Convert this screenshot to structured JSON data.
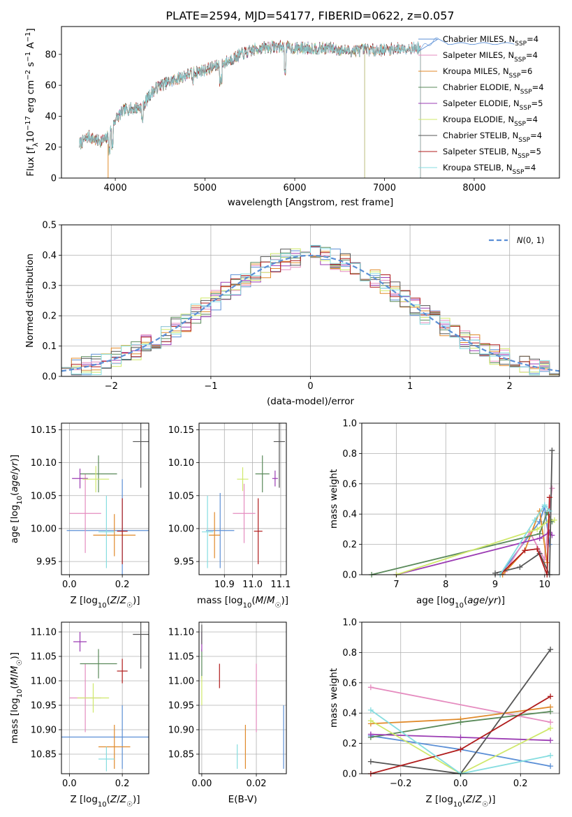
{
  "title": "PLATE=2594, MJD=54177, FIBERID=0622, z=0.057",
  "colors": {
    "chabrier_miles": "#5b8fd6",
    "salpeter_miles": "#e58bbf",
    "kroupa_miles": "#e08a2a",
    "chabrier_elodie": "#5a8a5a",
    "salpeter_elodie": "#9b3bb3",
    "kroupa_elodie": "#cfe86a",
    "chabrier_stelib": "#555555",
    "salpeter_stelib": "#b01c1c",
    "kroupa_stelib": "#86dde0",
    "normal_fit": "#5b8fd6"
  },
  "chart_data": [
    {
      "type": "line",
      "id": "spectrum",
      "xlabel": "wavelength [Angstrom, rest frame]",
      "ylabel": "Flux [f_λ 10^-17 erg cm^-2 s^-1 A^-1]",
      "xlim": [
        3400,
        8950
      ],
      "ylim": [
        0,
        98
      ],
      "xticks": [
        4000,
        5000,
        6000,
        7000,
        8000
      ],
      "yticks": [
        0,
        20,
        40,
        60,
        80
      ],
      "grid": false,
      "legend_position": "top-right",
      "legend": [
        {
          "label": "Chabrier MILES, N",
          "sub": "SSP",
          "suffix": "=4"
        },
        {
          "label": "Salpeter MILES, N",
          "sub": "SSP",
          "suffix": "=4"
        },
        {
          "label": "Kroupa MILES, N",
          "sub": "SSP",
          "suffix": "=6"
        },
        {
          "label": "Chabrier ELODIE, N",
          "sub": "SSP",
          "suffix": "=4"
        },
        {
          "label": "Salpeter ELODIE, N",
          "sub": "SSP",
          "suffix": "=5"
        },
        {
          "label": "Kroupa ELODIE, N",
          "sub": "SSP",
          "suffix": "=4"
        },
        {
          "label": "Chabrier STELIB, N",
          "sub": "SSP",
          "suffix": "=4"
        },
        {
          "label": "Salpeter STELIB, N",
          "sub": "SSP",
          "suffix": "=5"
        },
        {
          "label": "Kroupa STELIB, N",
          "sub": "SSP",
          "suffix": "=4"
        }
      ],
      "continuum": {
        "x": [
          3600,
          3700,
          3800,
          3900,
          4000,
          4100,
          4200,
          4300,
          4400,
          4500,
          4600,
          4800,
          5000,
          5200,
          5400,
          5600,
          5800,
          6000,
          6200,
          6400,
          6600,
          6800,
          7000,
          7200,
          7400,
          7600
        ],
        "y": [
          22,
          27,
          24,
          25,
          38,
          44,
          45,
          46,
          55,
          60,
          62,
          67,
          70,
          74,
          80,
          84,
          85,
          84,
          84,
          84,
          82,
          83,
          83,
          84,
          84,
          90
        ]
      },
      "series_ranges": [
        {
          "name": "Chabrier MILES, N_SSP=4",
          "x": [
            3600,
            7600
          ]
        },
        {
          "name": "Salpeter MILES, N_SSP=4",
          "x": [
            3600,
            7400
          ]
        },
        {
          "name": "Kroupa MILES, N_SSP=6",
          "x": [
            3600,
            7400
          ]
        },
        {
          "name": "Chabrier ELODIE, N_SSP=4",
          "x": [
            3600,
            6780
          ]
        },
        {
          "name": "Salpeter ELODIE, N_SSP=5",
          "x": [
            3600,
            6780
          ]
        },
        {
          "name": "Kroupa ELODIE, N_SSP=4",
          "x": [
            3600,
            6780
          ]
        },
        {
          "name": "Chabrier STELIB, N_SSP=4",
          "x": [
            3600,
            7400
          ]
        },
        {
          "name": "Salpeter STELIB, N_SSP=5",
          "x": [
            3600,
            7400
          ]
        },
        {
          "name": "Kroupa STELIB, N_SSP=4",
          "x": [
            3600,
            7400
          ]
        }
      ]
    },
    {
      "type": "line",
      "id": "residual-histogram",
      "xlabel": "(data-model)/error",
      "ylabel": "Normed distribution",
      "xlim": [
        -2.5,
        2.5
      ],
      "ylim": [
        0,
        0.5
      ],
      "xticks": [
        -2,
        -1,
        0,
        1,
        2
      ],
      "yticks": [
        0.0,
        0.1,
        0.2,
        0.3,
        0.4,
        0.5
      ],
      "grid": true,
      "legend_position": "top-right",
      "legend_label": "N(0,1)",
      "bin_width": 0.1
    },
    {
      "type": "scatter",
      "id": "age-vs-z",
      "xlabel": "Z [log10(Z/Z☉)]",
      "ylabel": "age [log10(age/yr)]",
      "xlim": [
        -0.03,
        0.3
      ],
      "ylim": [
        9.93,
        10.16
      ],
      "xticks": [
        0.0,
        0.2
      ],
      "yticks": [
        9.95,
        10.0,
        10.05,
        10.1,
        10.15
      ],
      "grid": true,
      "points": [
        {
          "x": 0.2,
          "y": 9.997,
          "xerr": 0.21,
          "yerr": 0.078,
          "color": "#5b8fd6"
        },
        {
          "x": 0.06,
          "y": 10.023,
          "xerr": 0.06,
          "yerr": 0.06,
          "color": "#e58bbf"
        },
        {
          "x": 0.17,
          "y": 9.99,
          "xerr": 0.08,
          "yerr": 0.032,
          "color": "#e08a2a"
        },
        {
          "x": 0.11,
          "y": 10.083,
          "xerr": 0.07,
          "yerr": 0.028,
          "color": "#5a8a5a"
        },
        {
          "x": 0.04,
          "y": 10.076,
          "xerr": 0.03,
          "yerr": 0.015,
          "color": "#9b3bb3"
        },
        {
          "x": 0.1,
          "y": 10.075,
          "xerr": 0.05,
          "yerr": 0.02,
          "color": "#cfe86a"
        },
        {
          "x": 0.27,
          "y": 10.132,
          "xerr": 0.03,
          "yerr": 0.07,
          "color": "#555555"
        },
        {
          "x": 0.2,
          "y": 9.996,
          "xerr": 0.02,
          "yerr": 0.05,
          "color": "#b01c1c"
        },
        {
          "x": 0.14,
          "y": 9.995,
          "xerr": 0.03,
          "yerr": 0.055,
          "color": "#86dde0"
        }
      ]
    },
    {
      "type": "scatter",
      "id": "age-vs-mass",
      "xlabel": "mass [log10(M/M☉)]",
      "ylabel": "",
      "xlim": [
        10.81,
        11.12
      ],
      "ylim": [
        9.93,
        10.16
      ],
      "xticks": [
        10.9,
        11.0,
        11.1
      ],
      "yticks": [
        9.95,
        10.0,
        10.05,
        10.1,
        10.15
      ],
      "grid": true,
      "points": [
        {
          "x": 10.885,
          "y": 9.997,
          "xerr": 0.05,
          "yerr": 0.057,
          "color": "#5b8fd6"
        },
        {
          "x": 10.97,
          "y": 10.023,
          "xerr": 0.04,
          "yerr": 0.045,
          "color": "#e58bbf"
        },
        {
          "x": 10.865,
          "y": 9.99,
          "xerr": 0.02,
          "yerr": 0.035,
          "color": "#e08a2a"
        },
        {
          "x": 11.035,
          "y": 10.083,
          "xerr": 0.025,
          "yerr": 0.028,
          "color": "#5a8a5a"
        },
        {
          "x": 11.08,
          "y": 10.076,
          "xerr": 0.01,
          "yerr": 0.012,
          "color": "#9b3bb3"
        },
        {
          "x": 10.965,
          "y": 10.075,
          "xerr": 0.02,
          "yerr": 0.018,
          "color": "#cfe86a"
        },
        {
          "x": 11.095,
          "y": 10.132,
          "xerr": 0.02,
          "yerr": 0.07,
          "color": "#555555"
        },
        {
          "x": 11.02,
          "y": 9.996,
          "xerr": 0.015,
          "yerr": 0.05,
          "color": "#b01c1c"
        },
        {
          "x": 10.84,
          "y": 9.995,
          "xerr": 0.02,
          "yerr": 0.055,
          "color": "#86dde0"
        }
      ]
    },
    {
      "type": "line",
      "id": "massweight-vs-age",
      "xlabel": "age [log10(age/yr)]",
      "ylabel": "mass weight",
      "xlim": [
        6.3,
        10.3
      ],
      "ylim": [
        0,
        1
      ],
      "xticks": [
        7,
        8,
        9,
        10
      ],
      "yticks": [
        0.0,
        0.2,
        0.4,
        0.6,
        0.8,
        1.0
      ],
      "grid": true,
      "series": [
        {
          "color": "#5b8fd6",
          "x": [
            9.1,
            9.9,
            10.0,
            10.1
          ],
          "y": [
            0.0,
            0.35,
            0.45,
            0.2
          ]
        },
        {
          "color": "#e58bbf",
          "x": [
            9.2,
            9.7,
            10.0,
            10.15
          ],
          "y": [
            0.02,
            0.28,
            0.1,
            0.57
          ]
        },
        {
          "color": "#e08a2a",
          "x": [
            9.15,
            9.6,
            9.9,
            10.05
          ],
          "y": [
            0.0,
            0.16,
            0.42,
            0.08
          ]
        },
        {
          "color": "#5a8a5a",
          "x": [
            6.5,
            9.9,
            10.05,
            10.15
          ],
          "y": [
            0.0,
            0.27,
            0.41,
            0.35
          ]
        },
        {
          "color": "#9b3bb3",
          "x": [
            7.0,
            9.9,
            10.1,
            10.15
          ],
          "y": [
            0.0,
            0.24,
            0.28,
            0.26
          ]
        },
        {
          "color": "#cfe86a",
          "x": [
            7.0,
            9.85,
            10.1,
            10.2
          ],
          "y": [
            0.0,
            0.3,
            0.36,
            0.36
          ]
        },
        {
          "color": "#555555",
          "x": [
            9.0,
            9.5,
            9.9,
            10.1,
            10.15
          ],
          "y": [
            0.01,
            0.05,
            0.14,
            0.0,
            0.82
          ]
        },
        {
          "color": "#b01c1c",
          "x": [
            9.1,
            9.6,
            9.85,
            10.05,
            10.1
          ],
          "y": [
            0.0,
            0.16,
            0.17,
            0.0,
            0.51
          ]
        },
        {
          "color": "#86dde0",
          "x": [
            9.1,
            9.8,
            10.0,
            10.1
          ],
          "y": [
            0.0,
            0.36,
            0.46,
            0.42
          ]
        }
      ]
    },
    {
      "type": "scatter",
      "id": "mass-vs-z",
      "xlabel": "Z [log10(Z/Z☉)]",
      "ylabel": "mass [log10(M/M☉)]",
      "xlim": [
        -0.03,
        0.3
      ],
      "ylim": [
        10.81,
        11.12
      ],
      "xticks": [
        0.0,
        0.2
      ],
      "yticks": [
        10.85,
        10.9,
        10.95,
        11.0,
        11.05,
        11.1
      ],
      "grid": true,
      "points": [
        {
          "x": 0.2,
          "y": 10.885,
          "xerr": 0.23,
          "yerr": 0.065,
          "color": "#5b8fd6"
        },
        {
          "x": 0.06,
          "y": 10.965,
          "xerr": 0.06,
          "yerr": 0.07,
          "color": "#e58bbf"
        },
        {
          "x": 0.17,
          "y": 10.865,
          "xerr": 0.06,
          "yerr": 0.045,
          "color": "#e08a2a"
        },
        {
          "x": 0.11,
          "y": 11.035,
          "xerr": 0.07,
          "yerr": 0.03,
          "color": "#5a8a5a"
        },
        {
          "x": 0.04,
          "y": 11.08,
          "xerr": 0.025,
          "yerr": 0.02,
          "color": "#9b3bb3"
        },
        {
          "x": 0.09,
          "y": 10.965,
          "xerr": 0.06,
          "yerr": 0.03,
          "color": "#cfe86a"
        },
        {
          "x": 0.27,
          "y": 11.095,
          "xerr": 0.03,
          "yerr": 0.07,
          "color": "#555555"
        },
        {
          "x": 0.2,
          "y": 11.02,
          "xerr": 0.02,
          "yerr": 0.025,
          "color": "#b01c1c"
        },
        {
          "x": 0.14,
          "y": 10.84,
          "xerr": 0.03,
          "yerr": 0.025,
          "color": "#86dde0"
        }
      ]
    },
    {
      "type": "scatter",
      "id": "mass-vs-ebv",
      "xlabel": "E(B-V)",
      "ylabel": "",
      "xlim": [
        -0.001,
        0.031
      ],
      "ylim": [
        10.81,
        11.12
      ],
      "xticks": [
        0.0,
        0.02
      ],
      "yticks": [
        10.85,
        10.9,
        10.95,
        11.0,
        11.05,
        11.1
      ],
      "grid": true,
      "points": [
        {
          "x": 0.03,
          "y": 10.885,
          "xerr": 0,
          "yerr": 0.065,
          "color": "#5b8fd6"
        },
        {
          "x": 0.02,
          "y": 10.965,
          "xerr": 0,
          "yerr": 0.07,
          "color": "#e58bbf"
        },
        {
          "x": 0.016,
          "y": 10.865,
          "xerr": 0,
          "yerr": 0.045,
          "color": "#e08a2a"
        },
        {
          "x": 0.0,
          "y": 11.035,
          "xerr": 0,
          "yerr": 0.03,
          "color": "#5a8a5a"
        },
        {
          "x": 0.0,
          "y": 11.08,
          "xerr": 0,
          "yerr": 0.02,
          "color": "#9b3bb3"
        },
        {
          "x": 0.0,
          "y": 10.98,
          "xerr": 0,
          "yerr": 0.03,
          "color": "#cfe86a"
        },
        {
          "x": 0.0,
          "y": 11.095,
          "xerr": 0,
          "yerr": 0.02,
          "color": "#555555"
        },
        {
          "x": 0.0065,
          "y": 11.01,
          "xerr": 0,
          "yerr": 0.025,
          "color": "#b01c1c"
        },
        {
          "x": 0.013,
          "y": 10.845,
          "xerr": 0,
          "yerr": 0.025,
          "color": "#86dde0"
        }
      ]
    },
    {
      "type": "line",
      "id": "massweight-vs-z",
      "xlabel": "Z [log10(Z/Z☉)]",
      "ylabel": "mass weight",
      "xlim": [
        -0.33,
        0.33
      ],
      "ylim": [
        0,
        1
      ],
      "xticks": [
        -0.2,
        0.0,
        0.2
      ],
      "yticks": [
        0.0,
        0.2,
        0.4,
        0.6,
        0.8,
        1.0
      ],
      "grid": true,
      "series": [
        {
          "color": "#5b8fd6",
          "x": [
            -0.3,
            0.0,
            0.3
          ],
          "y": [
            0.25,
            0.16,
            0.05
          ]
        },
        {
          "color": "#e58bbf",
          "x": [
            -0.3,
            0.3
          ],
          "y": [
            0.57,
            0.34
          ]
        },
        {
          "color": "#e08a2a",
          "x": [
            -0.3,
            0.0,
            0.3
          ],
          "y": [
            0.33,
            0.36,
            0.44
          ]
        },
        {
          "color": "#5a8a5a",
          "x": [
            -0.3,
            0.0,
            0.3
          ],
          "y": [
            0.24,
            0.34,
            0.41
          ]
        },
        {
          "color": "#9b3bb3",
          "x": [
            -0.3,
            0.0,
            0.3
          ],
          "y": [
            0.26,
            0.24,
            0.22
          ]
        },
        {
          "color": "#cfe86a",
          "x": [
            -0.3,
            0.0,
            0.3
          ],
          "y": [
            0.35,
            0.0,
            0.3
          ]
        },
        {
          "color": "#555555",
          "x": [
            -0.3,
            0.0,
            0.3
          ],
          "y": [
            0.08,
            0.0,
            0.82
          ]
        },
        {
          "color": "#b01c1c",
          "x": [
            -0.3,
            0.0,
            0.3
          ],
          "y": [
            0.0,
            0.16,
            0.51
          ]
        },
        {
          "color": "#86dde0",
          "x": [
            -0.3,
            0.0,
            0.3
          ],
          "y": [
            0.42,
            0.0,
            0.12
          ]
        }
      ]
    }
  ]
}
